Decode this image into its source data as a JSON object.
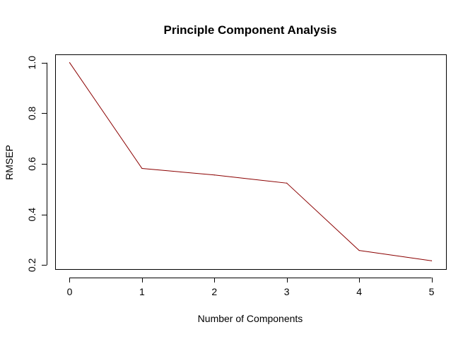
{
  "chart_data": {
    "type": "line",
    "title": "Principle Component Analysis",
    "xlabel": "Number of Components",
    "ylabel": "RMSEP",
    "x": [
      0,
      1,
      2,
      3,
      4,
      5
    ],
    "series": [
      {
        "values": [
          1.0,
          0.582,
          0.556,
          0.524,
          0.258,
          0.217
        ],
        "color": "#8B0000"
      }
    ],
    "xlim": [
      -0.2,
      5.2
    ],
    "ylim": [
      0.1843,
      1.0327
    ],
    "xticks": [
      0,
      1,
      2,
      3,
      4,
      5
    ],
    "xtick_labels": [
      "0",
      "1",
      "2",
      "3",
      "4",
      "5"
    ],
    "yticks": [
      0.2,
      0.4,
      0.6,
      0.8,
      1.0
    ],
    "ytick_labels": [
      "0.2",
      "0.4",
      "0.6",
      "0.8",
      "1.0"
    ],
    "grid": false,
    "legend": "none"
  }
}
